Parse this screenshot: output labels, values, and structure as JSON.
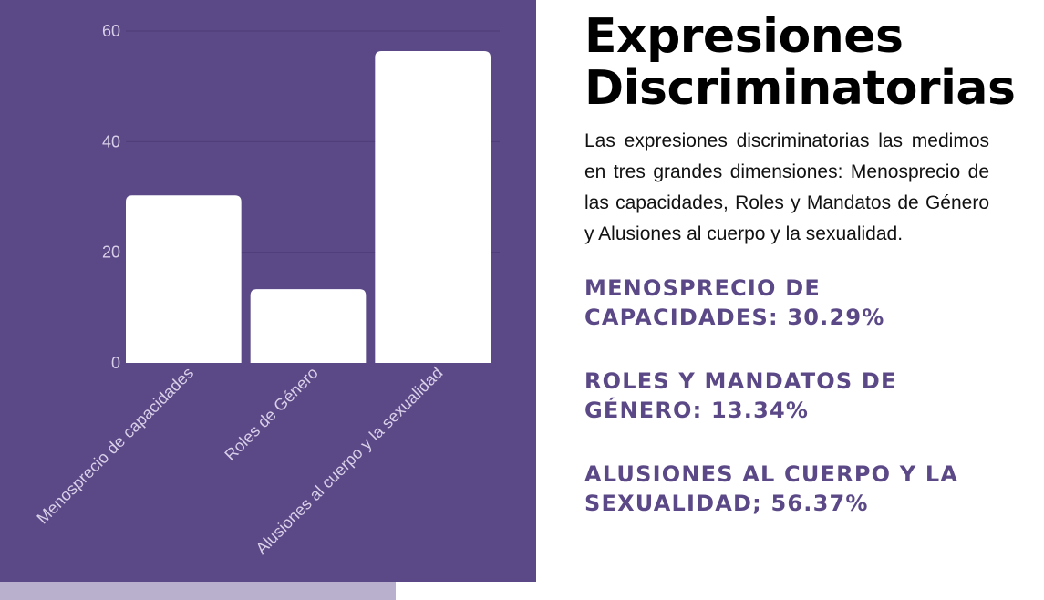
{
  "colors": {
    "panel_background": "#5b4886",
    "bar_fill": "#ffffff",
    "axis_text": "#d8cfe8",
    "grid_line": "#4e3c78",
    "accent_text": "#5b4886",
    "strip": "#b9b0ce"
  },
  "chart_data": {
    "type": "bar",
    "categories": [
      "Menosprecio de capacidades",
      "Roles de Género",
      "Alusiones al cuerpo y la sexualidad"
    ],
    "values": [
      30.29,
      13.34,
      56.37
    ],
    "title": "",
    "xlabel": "",
    "ylabel": "",
    "ylim": [
      0,
      60
    ],
    "yticks": [
      0,
      20,
      40,
      60
    ],
    "grid": true,
    "legend": "none"
  },
  "text": {
    "title": "Expresiones Discriminatorias",
    "description": "Las expresiones discriminatorias las medimos en tres grandes dimensiones: Menosprecio de las capacidades, Roles y Mandatos de Género y Alusiones al cuerpo y la sexualidad.",
    "stats": [
      "MENOSPRECIO DE CAPACIDADES: 30.29%",
      "ROLES Y MANDATOS DE GÉNERO: 13.34%",
      "ALUSIONES AL CUERPO Y LA SEXUALIDAD; 56.37%"
    ]
  }
}
